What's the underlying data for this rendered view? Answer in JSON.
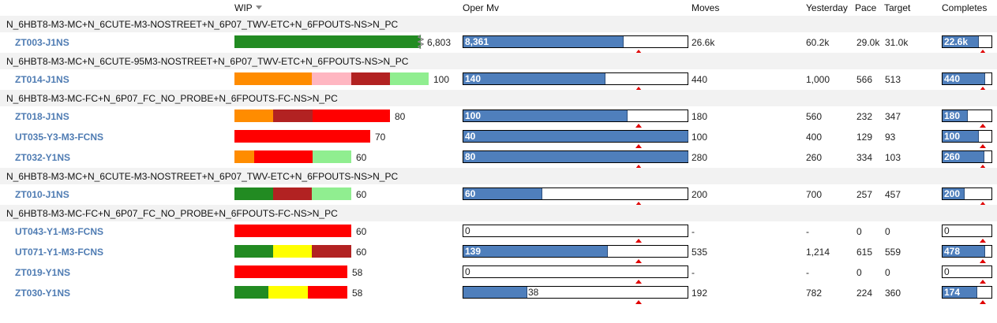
{
  "colors": {
    "green": "#228b22",
    "orange": "#ff8c00",
    "pink": "#ffb6c1",
    "darkred": "#b22222",
    "lightgreen": "#90ee90",
    "red": "#ff0000",
    "yellow": "#ffff00"
  },
  "header": {
    "wip": "WIP",
    "oper_mv": "Oper Mv",
    "moves": "Moves",
    "yesterday": "Yesterday",
    "pace": "Pace",
    "target": "Target",
    "completes": "Completes"
  },
  "groups": [
    {
      "name": "N_6HBT8-M3-MC+N_6CUTE-M3-NOSTREET+N_6P07_TWV-ETC+N_6FPOUTS-NS>N_PC",
      "items": [
        {
          "name": "ZT003-J1NS",
          "wip": [
            {
              "c": "green",
              "v": 1
            }
          ],
          "wip_pct": 0.96,
          "wip_break": true,
          "wip_label": "6,803",
          "oper": {
            "value": 0.71,
            "label": "8,361",
            "target": 0.78
          },
          "moves": "26.6k",
          "yesterday": "60.2k",
          "pace": "29.0k",
          "targetv": "31.0k",
          "completes": {
            "value": 0.73,
            "label": "22.6k",
            "target": 0.81
          }
        }
      ]
    },
    {
      "name": "N_6HBT8-M3-MC+N_6CUTE-95M3-NOSTREET+N_6P07_TWV-ETC+N_6FPOUTS-NS>N_PC",
      "items": [
        {
          "name": "ZT014-J1NS",
          "wip": [
            {
              "c": "orange",
              "v": 40
            },
            {
              "c": "pink",
              "v": 20
            },
            {
              "c": "darkred",
              "v": 20
            },
            {
              "c": "lightgreen",
              "v": 20
            }
          ],
          "wip_pct": 1.0,
          "wip_label": "100",
          "oper": {
            "value": 0.63,
            "label": "140",
            "target": 0.78
          },
          "moves": "440",
          "yesterday": "1,000",
          "pace": "566",
          "targetv": "513",
          "completes": {
            "value": 0.86,
            "label": "440",
            "target": 0.81
          }
        }
      ]
    },
    {
      "name": "N_6HBT8-M3-MC-FC+N_6P07_FC_NO_PROBE+N_6FPOUTS-FC-NS>N_PC",
      "items": [
        {
          "name": "ZT018-J1NS",
          "wip": [
            {
              "c": "orange",
              "v": 25
            },
            {
              "c": "darkred",
              "v": 25
            },
            {
              "c": "red",
              "v": 50
            }
          ],
          "wip_pct": 0.8,
          "wip_label": "80",
          "oper": {
            "value": 0.73,
            "label": "100",
            "target": 0.78
          },
          "moves": "180",
          "yesterday": "560",
          "pace": "232",
          "targetv": "347",
          "completes": {
            "value": 0.5,
            "label": "180",
            "target": 0.81
          }
        },
        {
          "name": "UT035-Y3-M3-FCNS",
          "wip": [
            {
              "c": "red",
              "v": 100
            }
          ],
          "wip_pct": 0.7,
          "wip_label": "70",
          "oper": {
            "value": 1.0,
            "label": "40",
            "target": 0.78
          },
          "moves": "100",
          "yesterday": "400",
          "pace": "129",
          "targetv": "93",
          "completes": {
            "value": 0.73,
            "label": "100",
            "target": 0.81
          }
        },
        {
          "name": "ZT032-Y1NS",
          "wip": [
            {
              "c": "orange",
              "v": 17
            },
            {
              "c": "red",
              "v": 50
            },
            {
              "c": "lightgreen",
              "v": 33
            }
          ],
          "wip_pct": 0.6,
          "wip_label": "60",
          "oper": {
            "value": 1.0,
            "label": "80",
            "target": 0.78
          },
          "moves": "280",
          "yesterday": "260",
          "pace": "334",
          "targetv": "103",
          "completes": {
            "value": 0.84,
            "label": "260",
            "target": 0.81
          }
        }
      ]
    },
    {
      "name": "N_6HBT8-M3-MC+N_6CUTE-M3-NOSTREET+N_6P07_TWV-ETC+N_6FPOUTS-NS>N_PC",
      "items": [
        {
          "name": "ZT010-J1NS",
          "wip": [
            {
              "c": "green",
              "v": 33
            },
            {
              "c": "darkred",
              "v": 33
            },
            {
              "c": "lightgreen",
              "v": 34
            }
          ],
          "wip_pct": 0.6,
          "wip_label": "60",
          "oper": {
            "value": 0.35,
            "label": "60",
            "target": 0.78
          },
          "moves": "200",
          "yesterday": "700",
          "pace": "257",
          "targetv": "457",
          "completes": {
            "value": 0.44,
            "label": "200",
            "target": 0.81
          }
        }
      ]
    },
    {
      "name": "N_6HBT8-M3-MC-FC+N_6P07_FC_NO_PROBE+N_6FPOUTS-FC-NS>N_PC",
      "items": [
        {
          "name": "UT043-Y1-M3-FCNS",
          "wip": [
            {
              "c": "red",
              "v": 100
            }
          ],
          "wip_pct": 0.6,
          "wip_label": "60",
          "oper": {
            "value": 0,
            "label": "0",
            "target": 0.78
          },
          "moves": "-",
          "yesterday": "-",
          "pace": "0",
          "targetv": "0",
          "completes": {
            "value": 0,
            "label": "0",
            "target": 0.81
          }
        },
        {
          "name": "UT071-Y1-M3-FCNS",
          "wip": [
            {
              "c": "green",
              "v": 33
            },
            {
              "c": "yellow",
              "v": 33
            },
            {
              "c": "darkred",
              "v": 34
            }
          ],
          "wip_pct": 0.6,
          "wip_label": "60",
          "oper": {
            "value": 0.64,
            "label": "139",
            "target": 0.78
          },
          "moves": "535",
          "yesterday": "1,214",
          "pace": "615",
          "targetv": "559",
          "completes": {
            "value": 0.86,
            "label": "478",
            "target": 0.81
          }
        },
        {
          "name": "ZT019-Y1NS",
          "wip": [
            {
              "c": "red",
              "v": 100
            }
          ],
          "wip_pct": 0.58,
          "wip_label": "58",
          "oper": {
            "value": 0,
            "label": "0",
            "target": 0.78
          },
          "moves": "-",
          "yesterday": "-",
          "pace": "0",
          "targetv": "0",
          "completes": {
            "value": 0,
            "label": "0",
            "target": 0.81
          }
        },
        {
          "name": "ZT030-Y1NS",
          "wip": [
            {
              "c": "green",
              "v": 30
            },
            {
              "c": "yellow",
              "v": 35
            },
            {
              "c": "red",
              "v": 35
            }
          ],
          "wip_pct": 0.58,
          "wip_label": "58",
          "oper": {
            "value": 0.28,
            "label": "38",
            "target": 0.78
          },
          "moves": "192",
          "yesterday": "782",
          "pace": "224",
          "targetv": "360",
          "completes": {
            "value": 0.7,
            "label": "174",
            "target": 0.81
          }
        }
      ]
    }
  ]
}
